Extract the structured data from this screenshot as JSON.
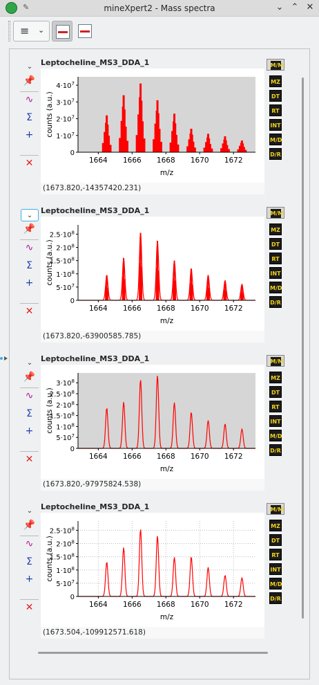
{
  "window": {
    "title": "mineXpert2 - Mass spectra"
  },
  "toolbar": {
    "menu_icon": "hamburger-menu-icon",
    "icons": [
      "keep-x-range-icon",
      "keep-y-range-icon"
    ]
  },
  "plots": [
    {
      "title": "Leptocheline_MS3_DDA_1",
      "coord": "(1673.820,-14357420.231)",
      "style": "bars",
      "bg": "#d6d6d6",
      "xlabel": "m/z",
      "ylabel": "counts (a.u.)",
      "xticks": [
        "1664",
        "1666",
        "1668",
        "1670",
        "1672"
      ],
      "yticks": [
        {
          "v": 0,
          "m": "0",
          "e": ""
        },
        {
          "v": 10000000,
          "m": "1·10",
          "e": "7"
        },
        {
          "v": 20000000,
          "m": "2·10",
          "e": "7"
        },
        {
          "v": 30000000,
          "m": "3·10",
          "e": "7"
        },
        {
          "v": 40000000,
          "m": "4·10",
          "e": "7"
        }
      ],
      "ymax": 45000000
    },
    {
      "title": "Leptocheline_MS3_DDA_1",
      "coord": "(1673.820,-63900585.785)",
      "style": "mixed",
      "bg": "#ffffff",
      "xlabel": "m/z",
      "ylabel": "counts (a.u.)",
      "xticks": [
        "1664",
        "1666",
        "1668",
        "1670",
        "1672"
      ],
      "yticks": [
        {
          "v": 0,
          "m": "0",
          "e": ""
        },
        {
          "v": 50000000,
          "m": "5·10",
          "e": "7"
        },
        {
          "v": 100000000,
          "m": "1·10",
          "e": "8"
        },
        {
          "v": 150000000,
          "m": "1.5·10",
          "e": "8"
        },
        {
          "v": 200000000,
          "m": "2·10",
          "e": "8"
        },
        {
          "v": 250000000,
          "m": "2.5·10",
          "e": "8"
        }
      ],
      "ymax": 285000000
    },
    {
      "title": "Leptocheline_MS3_DDA_1",
      "coord": "(1673.820,-97975824.538)",
      "style": "line",
      "bg": "#d6d6d6",
      "xlabel": "m/z",
      "ylabel": "counts (a.u.)",
      "xticks": [
        "1664",
        "1666",
        "1668",
        "1670",
        "1672"
      ],
      "yticks": [
        {
          "v": 0,
          "m": "0",
          "e": ""
        },
        {
          "v": 50000000,
          "m": "5·10",
          "e": "7"
        },
        {
          "v": 100000000,
          "m": "1·10",
          "e": "8"
        },
        {
          "v": 150000000,
          "m": "1.5·10",
          "e": "8"
        },
        {
          "v": 200000000,
          "m": "2·10",
          "e": "8"
        },
        {
          "v": 250000000,
          "m": "2.5·10",
          "e": "8"
        },
        {
          "v": 300000000,
          "m": "3·10",
          "e": "8"
        }
      ],
      "ymax": 345000000
    },
    {
      "title": "Leptocheline_MS3_DDA_1",
      "coord": "(1673.504,-109912571.618)",
      "style": "line",
      "bg": "#ffffff",
      "grid": true,
      "xlabel": "m/z",
      "ylabel": "counts (a.u.)",
      "xticks": [
        "1664",
        "1666",
        "1668",
        "1670",
        "1672"
      ],
      "yticks": [
        {
          "v": 0,
          "m": "0",
          "e": ""
        },
        {
          "v": 50000000,
          "m": "5·10",
          "e": "7"
        },
        {
          "v": 100000000,
          "m": "1·10",
          "e": "8"
        },
        {
          "v": 150000000,
          "m": "1.5·10",
          "e": "8"
        },
        {
          "v": 200000000,
          "m": "2·10",
          "e": "8"
        },
        {
          "v": 250000000,
          "m": "2.5·10",
          "e": "8"
        }
      ],
      "ymax": 285000000
    }
  ],
  "chart_data": [
    {
      "type": "bar",
      "xlabel": "m/z",
      "ylabel": "counts (a.u.)",
      "xlim": [
        1662.8,
        1673.3
      ],
      "ylim": [
        0,
        45000000
      ],
      "series": [
        {
          "x": [
            1664.5,
            1665.5,
            1666.5,
            1667.5,
            1668.5,
            1669.5,
            1670.5,
            1671.5,
            1672.5
          ],
          "values": [
            22000000,
            34000000,
            41000000,
            31000000,
            23000000,
            14000000,
            11000000,
            9500000,
            7000000
          ]
        }
      ]
    },
    {
      "type": "line",
      "xlabel": "m/z",
      "ylabel": "counts (a.u.)",
      "xlim": [
        1662.8,
        1673.3
      ],
      "ylim": [
        0,
        285000000
      ],
      "series": [
        {
          "x": [
            1664.5,
            1665.5,
            1666.5,
            1667.5,
            1668.5,
            1669.5,
            1670.5,
            1671.5,
            1672.5
          ],
          "values": [
            95000000,
            160000000,
            255000000,
            225000000,
            150000000,
            120000000,
            95000000,
            75000000,
            60000000
          ]
        }
      ]
    },
    {
      "type": "line",
      "xlabel": "m/z",
      "ylabel": "counts (a.u.)",
      "xlim": [
        1662.8,
        1673.3
      ],
      "ylim": [
        0,
        345000000
      ],
      "series": [
        {
          "x": [
            1664.5,
            1665.5,
            1666.5,
            1667.5,
            1668.5,
            1669.5,
            1670.5,
            1671.5,
            1672.5
          ],
          "values": [
            185000000,
            212000000,
            315000000,
            335000000,
            210000000,
            165000000,
            128000000,
            112000000,
            88000000
          ]
        }
      ]
    },
    {
      "type": "line",
      "xlabel": "m/z",
      "ylabel": "counts (a.u.)",
      "xlim": [
        1662.8,
        1673.3
      ],
      "ylim": [
        0,
        285000000
      ],
      "series": [
        {
          "x": [
            1664.5,
            1665.5,
            1666.5,
            1667.5,
            1668.5,
            1669.5,
            1670.5,
            1671.5,
            1672.5
          ],
          "values": [
            130000000,
            185000000,
            255000000,
            230000000,
            148000000,
            150000000,
            110000000,
            80000000,
            70000000
          ]
        }
      ]
    }
  ],
  "left_tools": [
    "pin-icon",
    "single-spectrum-icon",
    "sum-spectra-icon",
    "add-spectra-icon",
    "close-icon"
  ],
  "right_tools": [
    {
      "name": "mz-to-mz-icon",
      "label": "M/M"
    },
    {
      "name": "mz-icon",
      "label": "MZ"
    },
    {
      "name": "dt-icon",
      "label": "DT"
    },
    {
      "name": "rt-icon",
      "label": "RT"
    },
    {
      "name": "int-icon",
      "label": "INT"
    },
    {
      "name": "mz-dt-icon",
      "label": "M/D"
    },
    {
      "name": "dt-rt-icon",
      "label": "D/R"
    }
  ],
  "colors": {
    "trace": "#ff0000",
    "accent": "#3daee9",
    "icon_bg": "#1b1b1b",
    "icon_fg": "#f2d31c"
  }
}
